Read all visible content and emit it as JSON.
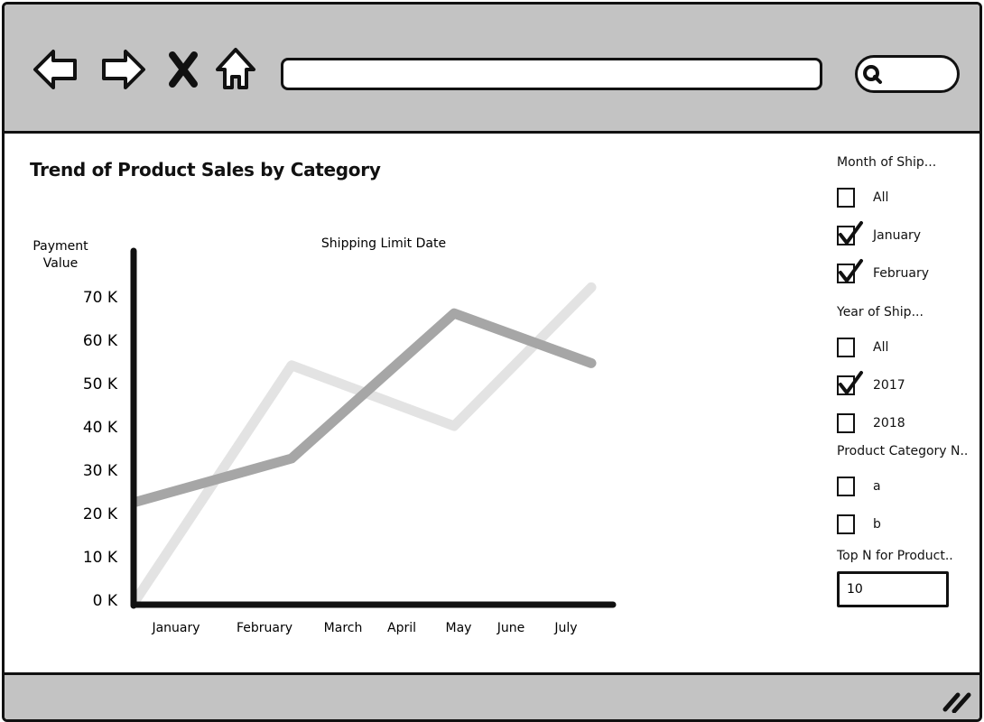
{
  "browser": {
    "url_value": "",
    "icons": [
      "back-arrow-icon",
      "forward-arrow-icon",
      "close-x-icon",
      "home-icon",
      "search-icon"
    ]
  },
  "dashboard": {
    "title": "Trend of Product Sales by Category"
  },
  "filters": {
    "month": {
      "title": "Month of Ship...",
      "options": [
        {
          "label": "All",
          "checked": false
        },
        {
          "label": "January",
          "checked": true
        },
        {
          "label": "February",
          "checked": true
        }
      ]
    },
    "year": {
      "title": "Year of Ship...",
      "options": [
        {
          "label": "All",
          "checked": false
        },
        {
          "label": "2017",
          "checked": true
        },
        {
          "label": "2018",
          "checked": false
        }
      ]
    },
    "category": {
      "title": "Product Category N..",
      "options": [
        {
          "label": "a",
          "checked": false
        },
        {
          "label": "b",
          "checked": false
        }
      ]
    },
    "topn": {
      "title": "Top N for Product..",
      "value": "10"
    }
  },
  "chart_data": {
    "type": "line",
    "title": "Shipping Limit Date",
    "ylabel": "Payment Value",
    "xlabel": "",
    "ylim": [
      0,
      70000
    ],
    "yticks": [
      {
        "value": 0,
        "label": "0 K"
      },
      {
        "value": 10000,
        "label": "10 K"
      },
      {
        "value": 20000,
        "label": "20 K"
      },
      {
        "value": 30000,
        "label": "30 K"
      },
      {
        "value": 40000,
        "label": "40 K"
      },
      {
        "value": 50000,
        "label": "50 K"
      },
      {
        "value": 60000,
        "label": "60 K"
      },
      {
        "value": 70000,
        "label": "70 K"
      }
    ],
    "x_labels": [
      "January",
      "February",
      "March",
      "April",
      "May",
      "June",
      "July"
    ],
    "series": [
      {
        "color": "#e3e3e3",
        "points": [
          {
            "x": "January",
            "y": 0
          },
          {
            "x": "February",
            "y": 54000
          },
          {
            "x": "May",
            "y": 40000
          },
          {
            "x": "July",
            "y": 72000
          }
        ]
      },
      {
        "color": "#a6a6a6",
        "points": [
          {
            "x": "January",
            "y": 22500
          },
          {
            "x": "February",
            "y": 32500
          },
          {
            "x": "May",
            "y": 66000
          },
          {
            "x": "July",
            "y": 54500
          }
        ]
      }
    ],
    "grid": false,
    "legend": "none"
  }
}
